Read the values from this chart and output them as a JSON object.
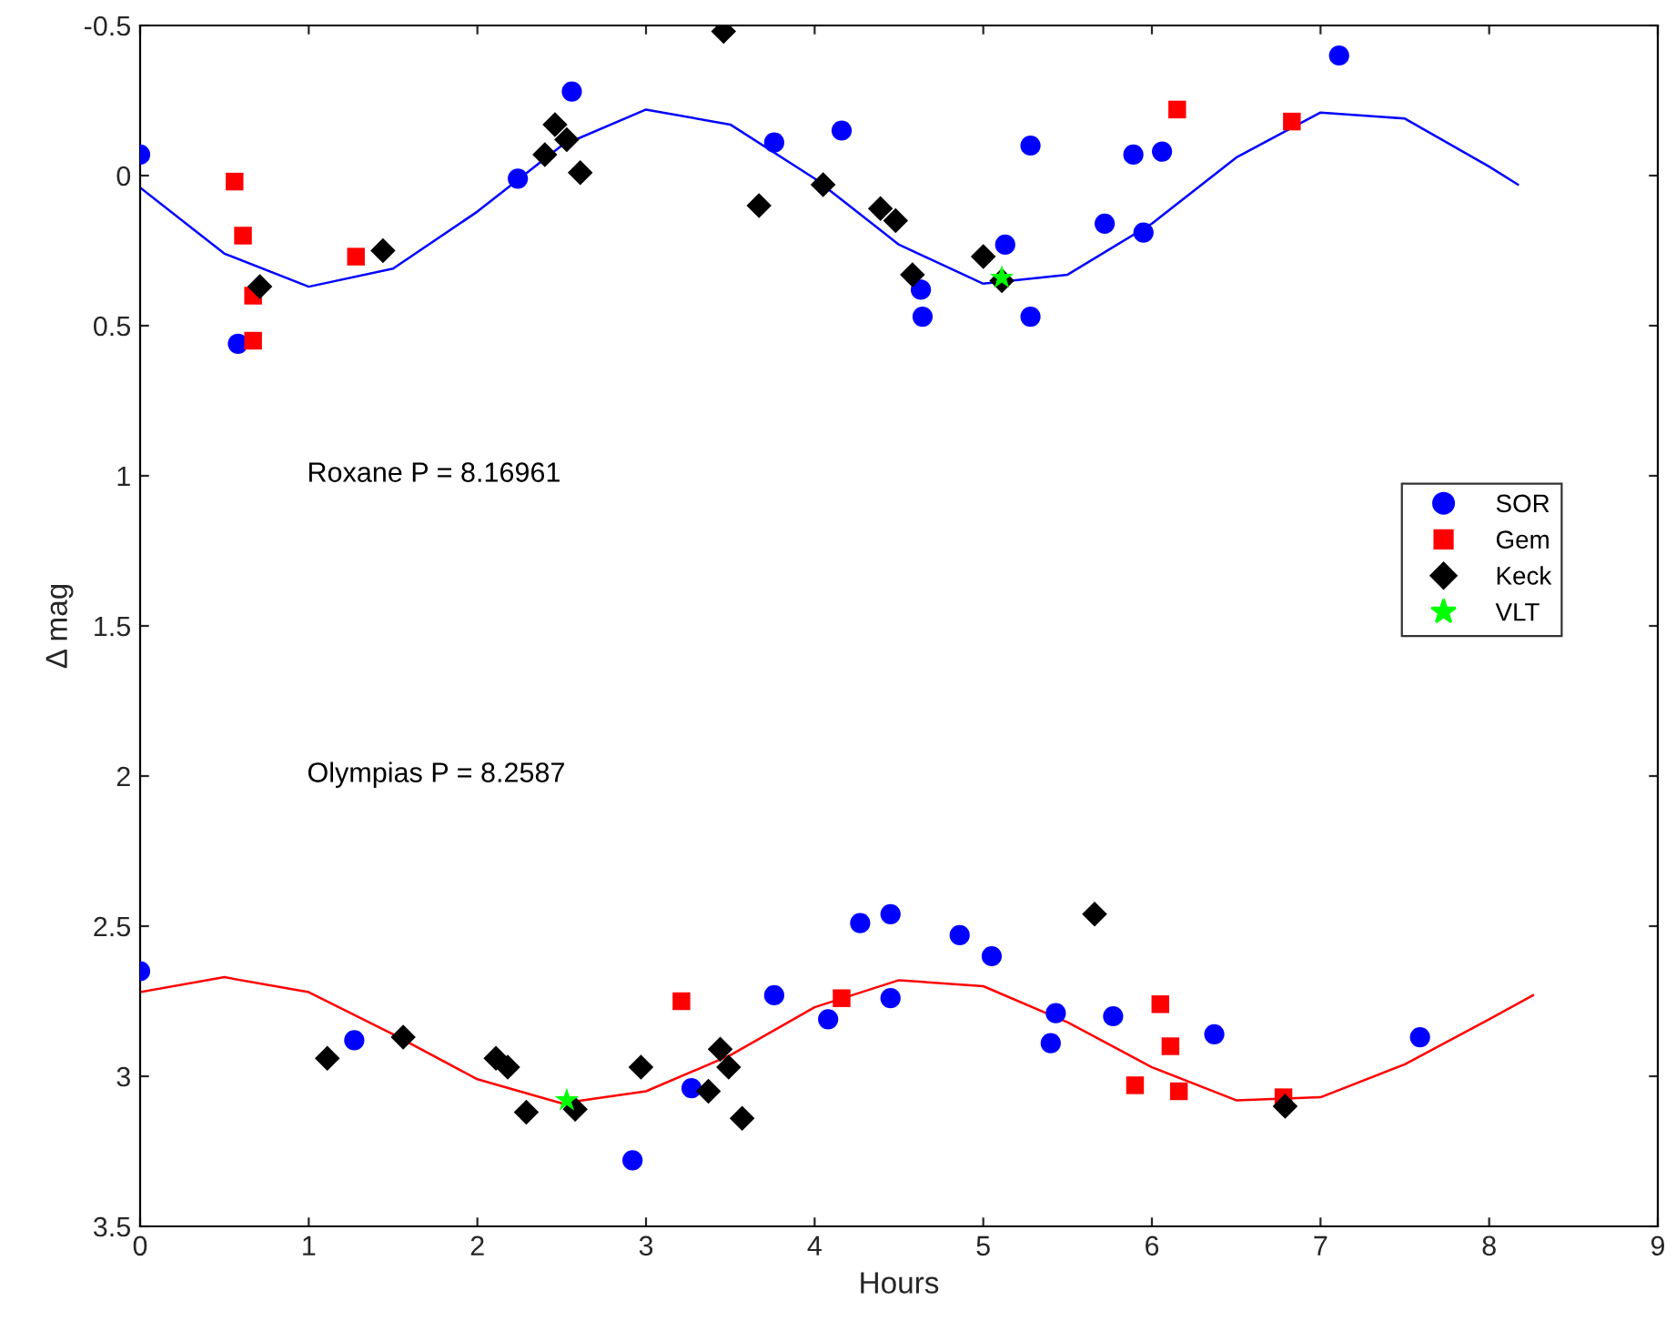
{
  "chart_data": {
    "type": "scatter",
    "xlabel": "Hours",
    "ylabel": "Δ mag",
    "xlim": [
      0,
      9
    ],
    "xticks": [
      0,
      1,
      2,
      3,
      4,
      5,
      6,
      7,
      8,
      9
    ],
    "ylim": [
      3.5,
      -0.5
    ],
    "yticks": [
      -0.5,
      0,
      0.5,
      1,
      1.5,
      2,
      2.5,
      3,
      3.5
    ],
    "grid": false,
    "legend": "right",
    "annotations": [
      "Roxane P = 8.16961",
      "Olympias P = 8.2587"
    ],
    "series": [
      {
        "name": "SOR",
        "color": "#0000ff",
        "marker": "circle",
        "x": [
          0,
          0.58,
          2.24,
          2.56,
          3.76,
          4.16,
          5.13,
          4.63,
          4.64,
          5.28,
          5.28,
          5.72,
          5.89,
          5.95,
          6.06,
          7.11,
          0,
          1.27,
          2.92,
          3.27,
          3.76,
          4.08,
          4.27,
          4.45,
          4.45,
          4.86,
          5.05,
          5.43,
          5.4,
          5.77,
          6.37,
          7.59
        ],
        "values": [
          -0.07,
          0.56,
          0.01,
          -0.28,
          -0.11,
          -0.15,
          0.23,
          0.38,
          0.47,
          -0.1,
          0.47,
          0.16,
          -0.07,
          0.19,
          -0.08,
          -0.4,
          2.65,
          2.88,
          3.28,
          3.04,
          2.73,
          2.81,
          2.49,
          2.46,
          2.74,
          2.53,
          2.6,
          2.79,
          2.89,
          2.8,
          2.86,
          2.87
        ]
      },
      {
        "name": "Gem",
        "color": "#ff0000",
        "marker": "square",
        "x": [
          0.56,
          0.61,
          0.67,
          0.67,
          1.28,
          6.15,
          6.83,
          3.21,
          4.16,
          6.05,
          6.11,
          5.9,
          6.16,
          6.78
        ],
        "values": [
          0.02,
          0.2,
          0.4,
          0.55,
          0.27,
          -0.22,
          -0.18,
          2.75,
          2.74,
          2.76,
          2.9,
          3.03,
          3.05,
          3.07
        ]
      },
      {
        "name": "Keck",
        "color": "#000000",
        "marker": "diamond",
        "x": [
          0.71,
          1.44,
          2.4,
          2.46,
          2.53,
          2.61,
          3.46,
          3.67,
          4.05,
          4.39,
          4.48,
          4.58,
          5.0,
          5.11,
          1.11,
          1.56,
          2.11,
          2.18,
          2.29,
          2.58,
          2.97,
          3.37,
          3.44,
          3.49,
          3.57,
          5.66,
          6.79
        ],
        "values": [
          0.37,
          0.25,
          -0.07,
          -0.17,
          -0.12,
          -0.01,
          -0.48,
          0.1,
          0.03,
          0.11,
          0.15,
          0.33,
          0.27,
          0.35,
          2.94,
          2.87,
          2.94,
          2.97,
          3.12,
          3.11,
          2.97,
          3.05,
          2.91,
          2.97,
          3.14,
          2.46,
          3.1
        ]
      },
      {
        "name": "VLT",
        "color": "#00ff00",
        "marker": "star",
        "x": [
          5.11,
          2.53
        ],
        "values": [
          0.34,
          3.08
        ]
      },
      {
        "type": "line",
        "color": "#0000ff",
        "marker": "none",
        "x": [
          0,
          0.5,
          1,
          1.5,
          2,
          2.5,
          3,
          3.5,
          4,
          4.5,
          5,
          5.5,
          6,
          6.5,
          7,
          7.5,
          8,
          8.17
        ],
        "values": [
          0.04,
          0.26,
          0.37,
          0.31,
          0.12,
          -0.1,
          -0.22,
          -0.17,
          0.01,
          0.23,
          0.36,
          0.33,
          0.16,
          -0.06,
          -0.21,
          -0.19,
          -0.03,
          0.03
        ]
      },
      {
        "type": "line",
        "color": "#ff0000",
        "marker": "none",
        "x": [
          0,
          0.5,
          1,
          1.5,
          2,
          2.5,
          3,
          3.5,
          4,
          4.5,
          5,
          5.5,
          6,
          6.5,
          7,
          7.5,
          8,
          8.26
        ],
        "values": [
          2.72,
          2.67,
          2.72,
          2.86,
          3.01,
          3.09,
          3.05,
          2.93,
          2.77,
          2.68,
          2.7,
          2.82,
          2.97,
          3.08,
          3.07,
          2.96,
          2.81,
          2.73
        ]
      }
    ]
  }
}
